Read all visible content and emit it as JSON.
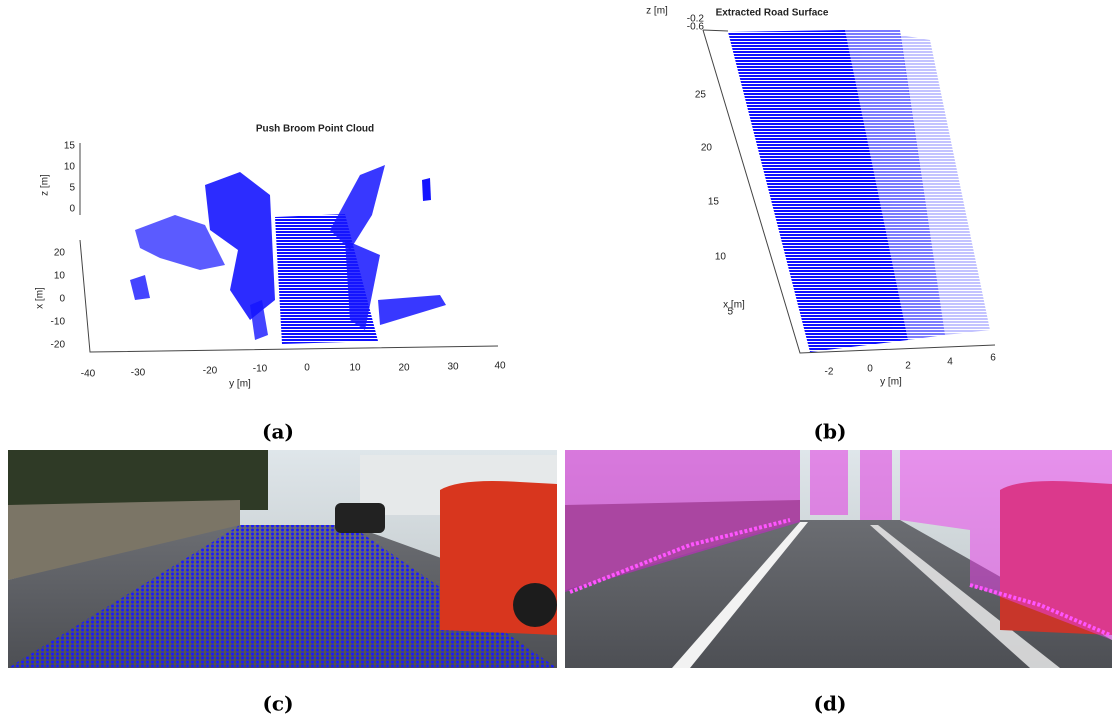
{
  "panels": [
    {
      "label": "(a)",
      "title": "Push Broom Point Cloud",
      "axes": {
        "z": {
          "label": "z [m]",
          "ticks": [
            "15",
            "10",
            "5",
            "0"
          ]
        },
        "x": {
          "label": "x [m]",
          "ticks": [
            "20",
            "10",
            "0",
            "-10",
            "-20"
          ]
        },
        "y": {
          "label": "y [m]",
          "ticks": [
            "-40",
            "-30",
            "-20",
            "-10",
            "0",
            "10",
            "20",
            "30",
            "40"
          ]
        }
      }
    },
    {
      "label": "(b)",
      "title": "Extracted Road Surface",
      "axes": {
        "z": {
          "label": "z [m]",
          "ticks": [
            "-0.2",
            "-0.6"
          ]
        },
        "x": {
          "label": "x [m]",
          "ticks": [
            "25",
            "20",
            "15",
            "10",
            "5"
          ]
        },
        "y": {
          "label": "y [m]",
          "ticks": [
            "-2",
            "0",
            "2",
            "4",
            "6"
          ]
        }
      }
    },
    {
      "label": "(c)"
    },
    {
      "label": "(d)"
    }
  ]
}
